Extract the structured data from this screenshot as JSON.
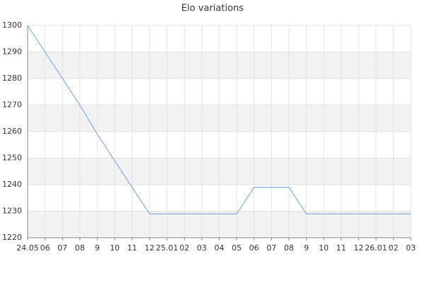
{
  "chart_data": {
    "type": "line",
    "title": "Elo variations",
    "categories": [
      "24.05",
      "06",
      "07",
      "08",
      "9",
      "10",
      "11",
      "12",
      "25.01",
      "02",
      "03",
      "04",
      "05",
      "06",
      "07",
      "08",
      "9",
      "10",
      "11",
      "12",
      "26.01",
      "02",
      "03"
    ],
    "series": [
      {
        "name": "Elo",
        "color": "#6d9de8",
        "values": [
          1300,
          1290,
          1280,
          1270,
          1259,
          1249,
          1239,
          1229,
          1229,
          1229,
          1229,
          1229,
          1229,
          1239,
          1239,
          1239,
          1229,
          1229,
          1229,
          1229,
          1229,
          1229,
          1229
        ]
      }
    ],
    "ylim": [
      1220,
      1300
    ],
    "yticks": [
      1220,
      1230,
      1240,
      1250,
      1260,
      1270,
      1280,
      1290,
      1300
    ],
    "grid": true
  }
}
